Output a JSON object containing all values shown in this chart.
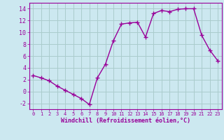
{
  "x": [
    0,
    1,
    2,
    3,
    4,
    5,
    6,
    7,
    8,
    9,
    10,
    11,
    12,
    13,
    14,
    15,
    16,
    17,
    18,
    19,
    20,
    21,
    22,
    23
  ],
  "y": [
    2.7,
    2.3,
    1.8,
    0.9,
    0.2,
    -0.5,
    -1.2,
    -2.2,
    2.3,
    4.6,
    8.6,
    11.4,
    11.6,
    11.7,
    9.2,
    13.2,
    13.7,
    13.5,
    13.9,
    14.0,
    14.0,
    9.5,
    7.0,
    5.2
  ],
  "line_color": "#990099",
  "marker": "+",
  "marker_size": 4,
  "bg_color": "#cce8f0",
  "grid_color": "#aacccc",
  "xlabel": "Windchill (Refroidissement éolien,°C)",
  "xlim": [
    -0.5,
    23.5
  ],
  "ylim": [
    -3,
    15
  ],
  "yticks": [
    -2,
    0,
    2,
    4,
    6,
    8,
    10,
    12,
    14
  ],
  "xtick_labels": [
    "0",
    "1",
    "2",
    "3",
    "4",
    "5",
    "6",
    "7",
    "8",
    "9",
    "10",
    "11",
    "12",
    "13",
    "14",
    "15",
    "16",
    "17",
    "18",
    "19",
    "20",
    "21",
    "22",
    "23"
  ]
}
